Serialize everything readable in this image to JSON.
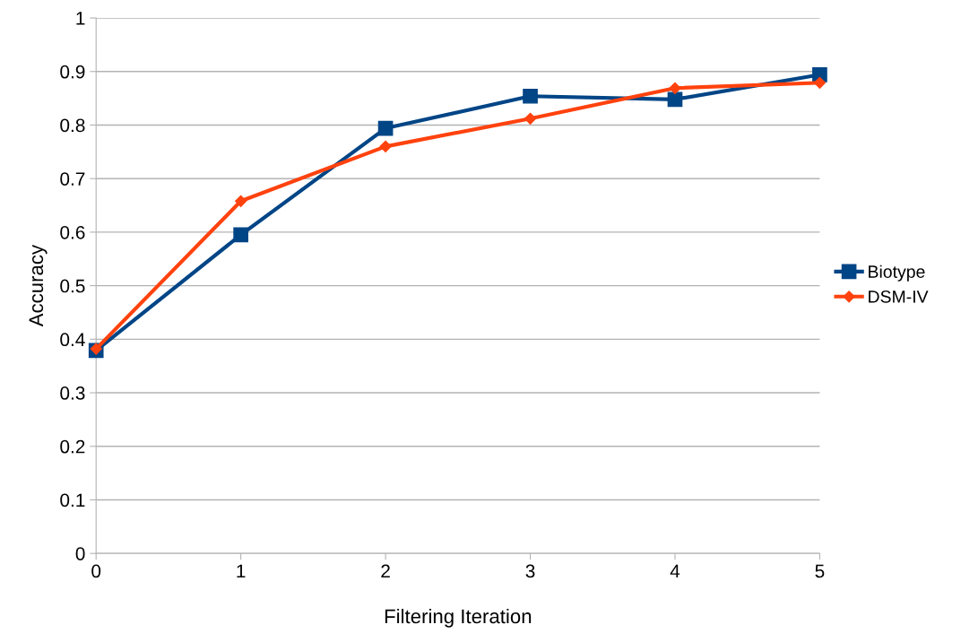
{
  "chart_data": {
    "type": "line",
    "xlabel": "Filtering Iteration",
    "ylabel": "Accuracy",
    "x": [
      0,
      1,
      2,
      3,
      4,
      5
    ],
    "series": [
      {
        "name": "Biotype",
        "color": "#004586",
        "marker": "square",
        "values": [
          0.379,
          0.595,
          0.794,
          0.854,
          0.848,
          0.894
        ]
      },
      {
        "name": "DSM-IV",
        "color": "#ff420e",
        "marker": "diamond",
        "values": [
          0.382,
          0.658,
          0.76,
          0.812,
          0.869,
          0.879
        ]
      }
    ],
    "xlim": [
      0,
      5
    ],
    "xticks": [
      0,
      1,
      2,
      3,
      4,
      5
    ],
    "ylim": [
      0,
      1
    ],
    "yticks": [
      0,
      0.1,
      0.2,
      0.3,
      0.4,
      0.5,
      0.6,
      0.7,
      0.8,
      0.9,
      1
    ],
    "grid": "y",
    "legend": "right",
    "line_style": "solid"
  }
}
